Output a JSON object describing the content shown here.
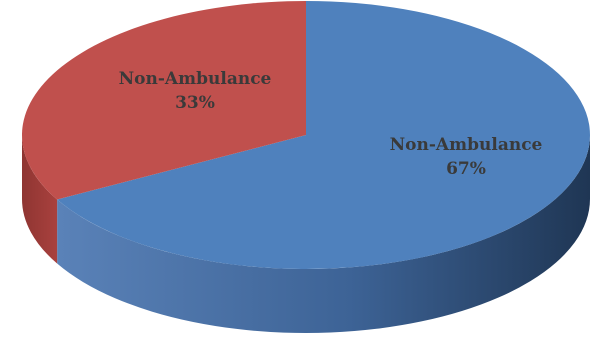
{
  "chart_data": {
    "type": "pie",
    "style": "3d",
    "title": "",
    "slices": [
      {
        "label": "Non-Ambulance",
        "value": 67,
        "display": "67%",
        "color": "#4f81bd",
        "side_color": "#2b4e7e"
      },
      {
        "label": "Non-Ambulance",
        "value": 33,
        "display": "33%",
        "color": "#c0504d",
        "side_color": "#8a2f2c"
      }
    ]
  }
}
